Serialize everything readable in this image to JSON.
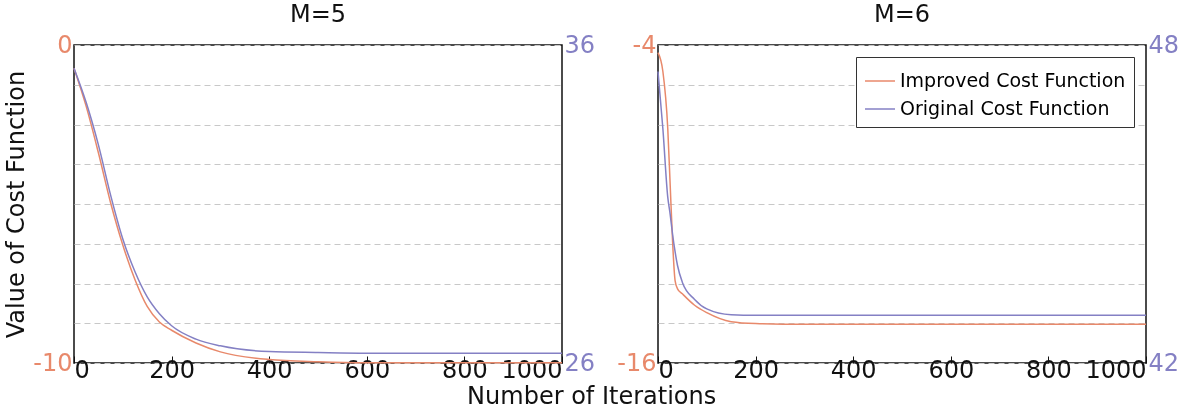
{
  "chart_data": [
    {
      "type": "line",
      "title": "M=5",
      "xlabel": "Number of Iterations",
      "ylabel": "Value of Cost Function",
      "x": [
        0,
        25,
        50,
        75,
        100,
        125,
        150,
        175,
        200,
        250,
        300,
        400,
        500,
        600,
        800,
        1000
      ],
      "series": [
        {
          "color": "#e8896b",
          "values": [
            -0.73,
            -1.93,
            -3.39,
            -4.96,
            -6.29,
            -7.38,
            -8.22,
            -8.71,
            -8.97,
            -9.37,
            -9.65,
            -9.89,
            -9.96,
            -9.99,
            -9.99,
            -9.99
          ]
        },
        {
          "color": "#8480c4",
          "axis": "y2",
          "values": [
            35.27,
            34.19,
            32.86,
            31.28,
            29.9,
            28.87,
            28.08,
            27.55,
            27.17,
            26.75,
            26.54,
            26.36,
            26.33,
            26.31,
            26.31,
            26.31
          ]
        }
      ],
      "xlim": [
        0,
        1000
      ],
      "xticks": [
        0,
        200,
        400,
        600,
        800,
        1000
      ],
      "ylim": [
        -10,
        0
      ],
      "yticks": [
        -10,
        {
          "value": -8.75,
          "label": null
        },
        {
          "value": -7.5,
          "label": null
        },
        {
          "value": -6.25,
          "label": null
        },
        {
          "value": -5,
          "label": null
        },
        {
          "value": -3.75,
          "label": null
        },
        {
          "value": -2.5,
          "label": null
        },
        {
          "value": -1.25,
          "label": null
        },
        0
      ],
      "y2lim": [
        26,
        36
      ],
      "y2ticks": [
        26,
        36
      ],
      "grid": "y"
    },
    {
      "type": "line",
      "title": "M=6",
      "x": [
        0,
        10,
        20,
        25,
        30,
        35,
        40,
        50,
        75,
        100,
        150,
        200,
        300,
        600,
        1000
      ],
      "series": [
        {
          "name": "Improved Cost Function",
          "color": "#e8896b",
          "values": [
            -4.29,
            -5.0,
            -7.15,
            -9.3,
            -11.46,
            -12.89,
            -13.2,
            -13.39,
            -13.82,
            -14.1,
            -14.44,
            -14.51,
            -14.54,
            -14.54,
            -14.54
          ]
        },
        {
          "name": "Original Cost Function",
          "color": "#8480c4",
          "axis": "y2",
          "values": [
            47.5,
            46.42,
            45.13,
            44.8,
            44.42,
            44.1,
            43.84,
            43.52,
            43.2,
            43.02,
            42.91,
            42.9,
            42.9,
            42.9,
            42.9
          ]
        }
      ],
      "xlim": [
        0,
        1000
      ],
      "xticks": [
        0,
        200,
        400,
        600,
        800,
        1000
      ],
      "ylim": [
        -16,
        -4
      ],
      "yticks": [
        -16,
        {
          "value": -14.5,
          "label": null
        },
        {
          "value": -13,
          "label": null
        },
        {
          "value": -11.5,
          "label": null
        },
        {
          "value": -10,
          "label": null
        },
        {
          "value": -8.5,
          "label": null
        },
        {
          "value": -7,
          "label": null
        },
        {
          "value": -5.5,
          "label": null
        },
        -4
      ],
      "y2lim": [
        42,
        48
      ],
      "y2ticks": [
        42,
        48
      ],
      "grid": "y",
      "legend": "top right"
    }
  ]
}
